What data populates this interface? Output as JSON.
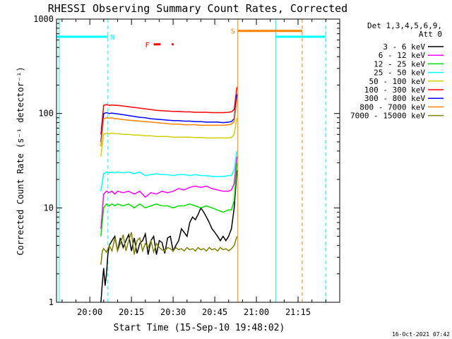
{
  "chart_data": {
    "type": "line",
    "title": "RHESSI Observing Summary Count Rates, Corrected",
    "xlabel": "Start Time (15-Sep-10 19:48:02)",
    "ylabel": "Corrected Count Rate (s⁻¹ detector⁻¹)",
    "y_scale": "log",
    "ylim": [
      1,
      1000
    ],
    "xlim_minutes": [
      -12,
      90
    ],
    "x_ticks": [
      {
        "label": "20:00",
        "min": 0
      },
      {
        "label": "20:15",
        "min": 15
      },
      {
        "label": "20:30",
        "min": 30
      },
      {
        "label": "20:45",
        "min": 45
      },
      {
        "label": "21:00",
        "min": 60
      },
      {
        "label": "21:15",
        "min": 75
      }
    ],
    "y_ticks": [
      {
        "label": "1",
        "v": 1
      },
      {
        "label": "10",
        "v": 10
      },
      {
        "label": "100",
        "v": 100
      },
      {
        "label": "1000",
        "v": 1000
      }
    ],
    "legend_title": [
      "Det 1,3,4,5,6,9,",
      "Att 0"
    ],
    "legend_position": "top-right",
    "series": [
      {
        "name": "3 - 6 keV",
        "color": "#000000",
        "key": "s3_6",
        "x": [
          4,
          4.5,
          5,
          5.5,
          6,
          6.5,
          7,
          8,
          9,
          10,
          11,
          12,
          13,
          14,
          15,
          16,
          17,
          18,
          19,
          20,
          21,
          22,
          23,
          24,
          25,
          26,
          27,
          28,
          29,
          30,
          31,
          32,
          33,
          34,
          35,
          36,
          37,
          38,
          39,
          40,
          41,
          42,
          43,
          44,
          45,
          46,
          47,
          48,
          49,
          50,
          51,
          52,
          53
        ],
        "y": [
          1,
          1.6,
          2.3,
          1.5,
          2,
          3.2,
          4,
          4.5,
          5,
          3.5,
          4.8,
          3.8,
          4.5,
          5.2,
          3.5,
          4.8,
          3.3,
          4.2,
          4.5,
          5.3,
          3.2,
          4.5,
          5,
          3.2,
          4.5,
          4.3,
          3.3,
          4.8,
          5,
          3.5,
          4,
          4.5,
          6,
          5.5,
          5,
          7,
          8,
          7.5,
          8.5,
          10,
          9,
          8,
          7,
          6,
          5.5,
          5,
          4.5,
          5,
          4.5,
          5,
          6,
          10,
          25
        ]
      },
      {
        "name": "6 - 12 keV",
        "color": "#ff00ff",
        "key": "s6_12",
        "x": [
          4,
          5,
          6,
          7,
          8,
          9,
          10,
          12,
          14,
          16,
          18,
          20,
          22,
          24,
          26,
          28,
          30,
          32,
          34,
          36,
          38,
          40,
          42,
          44,
          46,
          48,
          50,
          51,
          52,
          53
        ],
        "y": [
          6,
          14,
          15,
          14.5,
          15,
          14,
          15,
          14.5,
          15,
          14,
          15,
          13,
          14.5,
          14,
          15,
          14.5,
          15,
          16,
          15.5,
          16.5,
          17,
          16.5,
          17,
          16,
          15.5,
          15,
          15,
          15.5,
          18,
          35
        ]
      },
      {
        "name": "12 - 25 keV",
        "color": "#00e000",
        "key": "s12_25",
        "x": [
          4,
          5,
          6,
          7,
          8,
          9,
          10,
          12,
          14,
          16,
          18,
          20,
          22,
          24,
          26,
          28,
          30,
          32,
          34,
          36,
          38,
          40,
          42,
          44,
          46,
          48,
          50,
          51,
          52,
          53
        ],
        "y": [
          5,
          10,
          11,
          10.5,
          11,
          10.5,
          11,
          10.5,
          11,
          10,
          11,
          10,
          10.5,
          11,
          10.5,
          10.5,
          10,
          10.5,
          10.5,
          11,
          10.5,
          10,
          10.5,
          10,
          9.5,
          9,
          9.5,
          9.5,
          12,
          30
        ]
      },
      {
        "name": "25 - 50 keV",
        "color": "#00ffff",
        "key": "s25_50",
        "x": [
          4,
          5,
          6,
          7,
          8,
          9,
          10,
          12,
          14,
          16,
          18,
          20,
          22,
          24,
          26,
          28,
          30,
          32,
          34,
          36,
          38,
          40,
          42,
          44,
          46,
          48,
          50,
          51,
          52,
          53
        ],
        "y": [
          15,
          23,
          24,
          23.5,
          24,
          23.5,
          24,
          23.5,
          24,
          23,
          24,
          22,
          22.5,
          23,
          22.5,
          22.5,
          22,
          22.5,
          22.5,
          22,
          22.5,
          22,
          22,
          21.5,
          21.5,
          21.5,
          22,
          22,
          25,
          40
        ]
      },
      {
        "name": "50 - 100 keV",
        "color": "#d0d000",
        "key": "s50_100",
        "x": [
          4,
          5,
          6,
          7,
          8,
          9,
          10,
          12,
          14,
          16,
          18,
          20,
          22,
          24,
          26,
          28,
          30,
          32,
          34,
          36,
          38,
          40,
          42,
          44,
          46,
          48,
          50,
          51,
          52,
          53
        ],
        "y": [
          35,
          60,
          62,
          61,
          62,
          61,
          61,
          60,
          60,
          59,
          59,
          58,
          58,
          57,
          57,
          57,
          56,
          56,
          56,
          56,
          55.5,
          55.5,
          55,
          55,
          55,
          55,
          55,
          55.5,
          60,
          90
        ]
      },
      {
        "name": "100 - 300 keV",
        "color": "#ff0000",
        "key": "s100_300",
        "x": [
          4,
          5,
          6,
          7,
          8,
          9,
          10,
          12,
          14,
          16,
          18,
          20,
          22,
          24,
          26,
          28,
          30,
          32,
          34,
          36,
          38,
          40,
          42,
          44,
          46,
          48,
          50,
          51,
          52,
          53
        ],
        "y": [
          60,
          122,
          124,
          122,
          123,
          122,
          122,
          120,
          118,
          116,
          114,
          112,
          110,
          108,
          107,
          106,
          105,
          105,
          104,
          104,
          103,
          103,
          103,
          102,
          102,
          102,
          103,
          104,
          110,
          190
        ]
      },
      {
        "name": "300 - 800 keV",
        "color": "#0000ff",
        "key": "s300_800",
        "x": [
          4,
          5,
          6,
          7,
          8,
          9,
          10,
          12,
          14,
          16,
          18,
          20,
          22,
          24,
          26,
          28,
          30,
          32,
          34,
          36,
          38,
          40,
          42,
          44,
          46,
          48,
          50,
          51,
          52,
          53
        ],
        "y": [
          50,
          100,
          102,
          100,
          101,
          100,
          99,
          97,
          95,
          93,
          91,
          90,
          88,
          87,
          86,
          85,
          84,
          84,
          83,
          83,
          82,
          82,
          81,
          81,
          81,
          80,
          81,
          82,
          88,
          160
        ]
      },
      {
        "name": "800 - 7000 keV",
        "color": "#ff8000",
        "key": "s800_7000",
        "x": [
          4,
          5,
          6,
          7,
          8,
          9,
          10,
          12,
          14,
          16,
          18,
          20,
          22,
          24,
          26,
          28,
          30,
          32,
          34,
          36,
          38,
          40,
          42,
          44,
          46,
          48,
          50,
          51,
          52,
          53
        ],
        "y": [
          45,
          88,
          90,
          89,
          90,
          88,
          88,
          86,
          85,
          84,
          83,
          82,
          81,
          80,
          79,
          78,
          77,
          77,
          76,
          76,
          76,
          75,
          75,
          75,
          75,
          75,
          76,
          77,
          82,
          140
        ]
      },
      {
        "name": "7000 - 15000 keV",
        "color": "#808000",
        "key": "s7000_15000",
        "x": [
          4,
          4.5,
          5,
          6,
          7,
          8,
          9,
          10,
          11,
          12,
          13,
          14,
          15,
          16,
          17,
          18,
          19,
          20,
          21,
          22,
          23,
          24,
          25,
          26,
          27,
          28,
          29,
          30,
          31,
          32,
          33,
          34,
          35,
          36,
          37,
          38,
          39,
          40,
          41,
          42,
          43,
          44,
          45,
          46,
          47,
          48,
          49,
          50,
          51,
          52,
          53
        ],
        "y": [
          2.5,
          3.5,
          3.7,
          3.4,
          4,
          3.5,
          4.8,
          3.5,
          4.2,
          5.2,
          3.5,
          4.5,
          5.5,
          3.2,
          4.5,
          4.8,
          3.5,
          4.2,
          3.8,
          4.5,
          3.4,
          4.2,
          3.8,
          3.6,
          3.5,
          3.8,
          3.7,
          3.5,
          3.8,
          3.6,
          3.7,
          3.5,
          3.8,
          3.6,
          3.7,
          3.5,
          3.8,
          3.6,
          3.7,
          3.5,
          3.8,
          3.6,
          3.7,
          3.5,
          3.8,
          3.6,
          3.7,
          3.5,
          3.7,
          4,
          5
        ]
      }
    ],
    "intervals": [
      {
        "label": "N",
        "color": "#00ffff",
        "x0": -12,
        "x1": 6.5,
        "y": 650
      },
      {
        "label": "",
        "color": "#00ffff",
        "x0": 67,
        "x1": 85,
        "y": 650
      },
      {
        "label": "S",
        "color": "#ff8000",
        "x0": 53.3,
        "x1": 76.5,
        "y": 750
      }
    ],
    "flare_label": {
      "text": "F",
      "color": "#ff0000",
      "segments": [
        [
          23,
          25.5
        ],
        [
          29.5,
          30.2
        ]
      ],
      "y": 540
    },
    "vlines": [
      {
        "x": -11,
        "color": "#00ffff",
        "dash": false
      },
      {
        "x": 6.5,
        "color": "#00ffff",
        "dash": true
      },
      {
        "x": 53.3,
        "color": "#ff8000",
        "dash": false
      },
      {
        "x": 67,
        "color": "#00ffff",
        "dash": false
      },
      {
        "x": 76.5,
        "color": "#ff8000",
        "dash": true
      },
      {
        "x": 85,
        "color": "#00ffff",
        "dash": true
      }
    ]
  },
  "timestamp": "16-Oct-2021 07:42"
}
